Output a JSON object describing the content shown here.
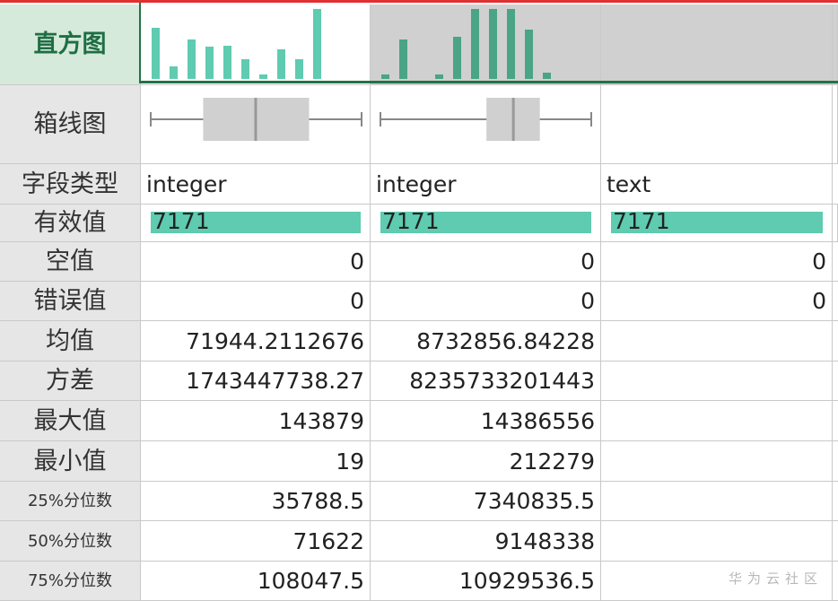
{
  "row_labels": [
    "直方图",
    "箱线图",
    "字段类型",
    "有效值",
    "空值",
    "错误值",
    "均值",
    "方差",
    "最大值",
    "最小值",
    "25%分位数",
    "50%分位数",
    "75%分位数"
  ],
  "columns": [
    {
      "histogram": [
        57,
        14,
        44,
        36,
        37,
        22,
        5,
        33,
        22,
        78
      ],
      "type": "integer",
      "valid": "7171",
      "null": "0",
      "error": "0",
      "mean": "71944.2112676",
      "variance": "1743447738.27",
      "max": "143879",
      "min": "19",
      "p25": "35788.5",
      "p50": "71622",
      "p75": "108047.5"
    },
    {
      "histogram": [
        5,
        44,
        0,
        5,
        47,
        78,
        78,
        78,
        55,
        7
      ],
      "type": "integer",
      "valid": "7171",
      "null": "0",
      "error": "0",
      "mean": "8732856.84228",
      "variance": "8235733201443",
      "max": "14386556",
      "min": "212279",
      "p25": "7340835.5",
      "p50": "9148338",
      "p75": "10929536.5"
    },
    {
      "type": "text",
      "valid": "7171",
      "null": "0",
      "error": "0"
    }
  ],
  "watermark": "华为云社区"
}
